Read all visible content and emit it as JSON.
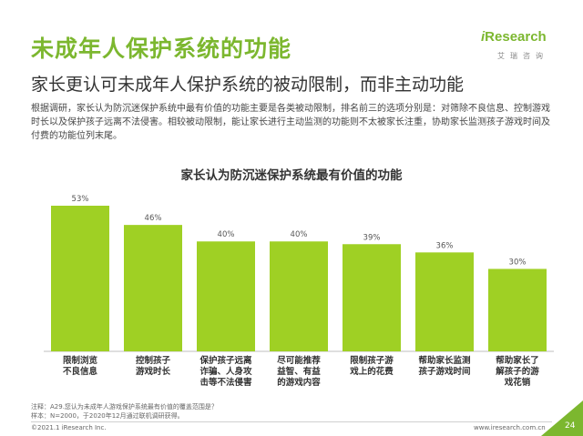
{
  "header": {
    "title": "未成年人保护系统的功能",
    "subtitle": "家长更认可未成年人保护系统的被动限制，而非主动功能"
  },
  "brand": {
    "logo_text": "iResearch",
    "logo_cn": "艾瑞咨询",
    "accent_color": "#7cb72f"
  },
  "description": "根据调研，家长认为防沉迷保护系统中最有价值的功能主要是各类被动限制，排名前三的选项分别是：对筛除不良信息、控制游戏时长以及保护孩子远离不法侵害。相较被动限制，能让家长进行主动监测的功能则不太被家长注重，协助家长监测孩子游戏时间及付费的功能位列末尾。",
  "chart_data": {
    "type": "bar",
    "title": "家长认为防沉迷保护系统最有价值的功能",
    "categories": [
      [
        "限制浏览",
        "不良信息"
      ],
      [
        "控制孩子",
        "游戏时长"
      ],
      [
        "保护孩子远离",
        "诈骗、人身攻",
        "击等不法侵害"
      ],
      [
        "尽可能推荐",
        "益智、有益",
        "的游戏内容"
      ],
      [
        "限制孩子游",
        "戏上的花费"
      ],
      [
        "帮助家长监测",
        "孩子游戏时间"
      ],
      [
        "帮助家长了",
        "解孩子的游",
        "戏花销"
      ]
    ],
    "values": [
      53,
      46,
      40,
      40,
      39,
      36,
      30
    ],
    "value_labels": [
      "53%",
      "46%",
      "40%",
      "40%",
      "39%",
      "36%",
      "30%"
    ],
    "unit": "%",
    "ylim": [
      0,
      60
    ],
    "bar_color": "#9fd024",
    "grid": false,
    "legend": "none"
  },
  "footer": {
    "note_line1": "注释：A29.您认为未成年人游戏保护系统最有价值的覆盖范围是？",
    "note_line2": "样本：N=2000，于2020年12月通过联机调研获得。",
    "copyright": "©2021.1 iResearch Inc.",
    "website": "www.iresearch.com.cn",
    "page_number": "24"
  }
}
